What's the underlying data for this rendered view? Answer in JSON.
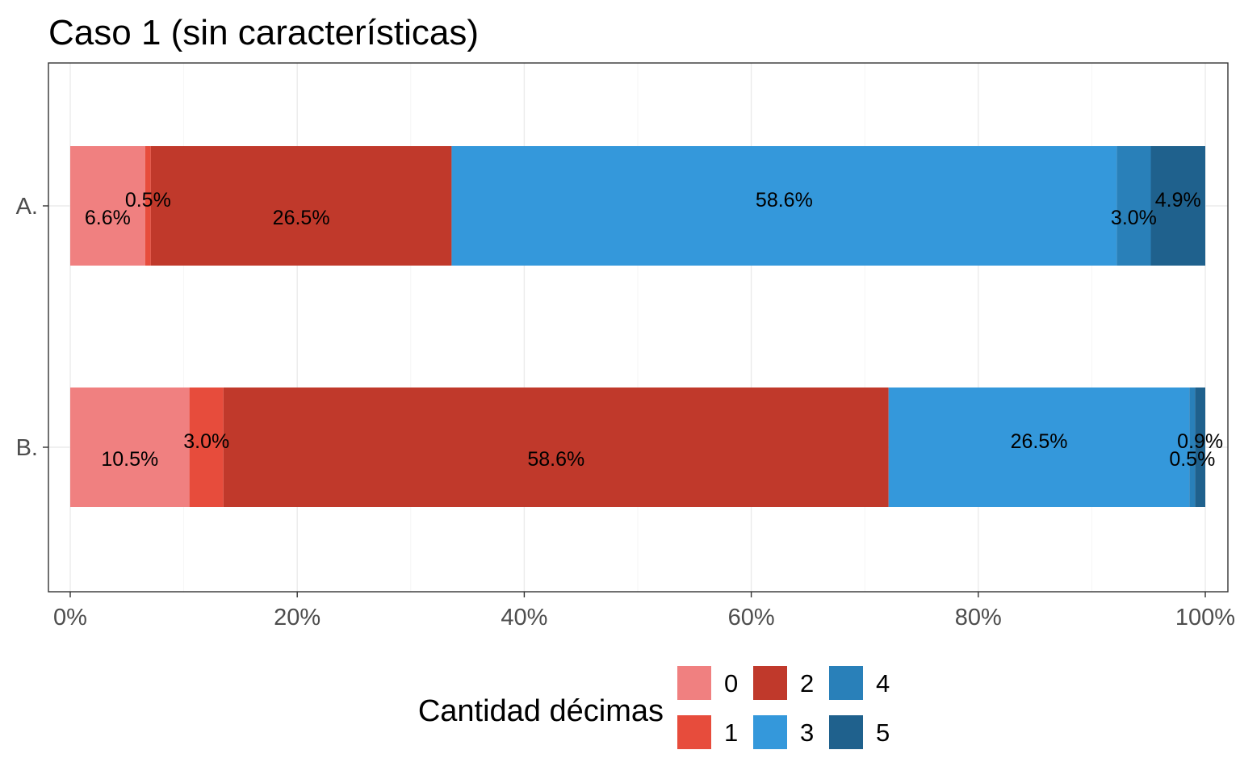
{
  "chart_data": {
    "type": "bar",
    "orientation": "horizontal",
    "stacked": true,
    "title": "Caso 1 (sin características)",
    "xlabel": "",
    "ylabel": "",
    "xlim": [
      0,
      100
    ],
    "x_ticks": [
      "0%",
      "20%",
      "40%",
      "60%",
      "80%",
      "100%"
    ],
    "x_tick_values": [
      0,
      20,
      40,
      60,
      80,
      100
    ],
    "categories": [
      "A.",
      "B."
    ],
    "grid": true,
    "legend": {
      "title": "Cantidad décimas",
      "position": "bottom"
    },
    "series": [
      {
        "name": "0",
        "color": "#F08080",
        "values": [
          6.6,
          10.5
        ],
        "labels": [
          "6.6%",
          "10.5%"
        ]
      },
      {
        "name": "1",
        "color": "#E74C3C",
        "values": [
          0.5,
          3.0
        ],
        "labels": [
          "0.5%",
          "3.0%"
        ]
      },
      {
        "name": "2",
        "color": "#C0392B",
        "values": [
          26.5,
          58.6
        ],
        "labels": [
          "26.5%",
          "58.6%"
        ]
      },
      {
        "name": "3",
        "color": "#3498DB",
        "values": [
          58.6,
          26.5
        ],
        "labels": [
          "58.6%",
          "26.5%"
        ]
      },
      {
        "name": "4",
        "color": "#2980B9",
        "values": [
          3.0,
          0.5
        ],
        "labels": [
          "3.0%",
          "0.5%"
        ]
      },
      {
        "name": "5",
        "color": "#1F618D",
        "values": [
          4.9,
          0.9
        ],
        "labels": [
          "4.9%",
          "0.9%"
        ]
      }
    ]
  }
}
